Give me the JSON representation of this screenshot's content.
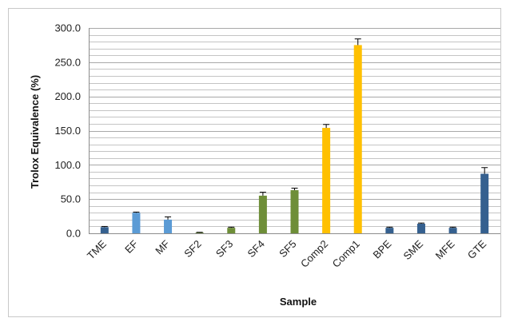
{
  "chart_data": {
    "type": "bar",
    "xlabel": "Sample",
    "ylabel": "Trolox Equivalence (%)",
    "ylim": [
      0,
      300
    ],
    "ytick_step": 50,
    "ytick_decimals": 1,
    "minor_grid_step": 10,
    "grid": true,
    "legend": "none",
    "error_bars": true,
    "categories": [
      "TME",
      "EF",
      "MF",
      "SF2",
      "SF3",
      "SF4",
      "SF5",
      "Comp2",
      "Comp1",
      "BPE",
      "SME",
      "MFE",
      "GTE"
    ],
    "values": [
      9,
      30,
      20,
      1,
      8,
      55,
      63,
      154,
      275,
      8,
      14,
      8,
      87
    ],
    "errors": [
      1,
      1,
      4,
      0.5,
      1,
      5,
      3,
      5,
      9,
      1,
      1,
      1,
      9
    ],
    "colors": [
      "#35608f",
      "#5b9bd5",
      "#5b9bd5",
      "#5b7a2c",
      "#6e8e38",
      "#6e8e38",
      "#6e8e38",
      "#ffc000",
      "#ffc000",
      "#35608f",
      "#35608f",
      "#35608f",
      "#35608f"
    ]
  }
}
